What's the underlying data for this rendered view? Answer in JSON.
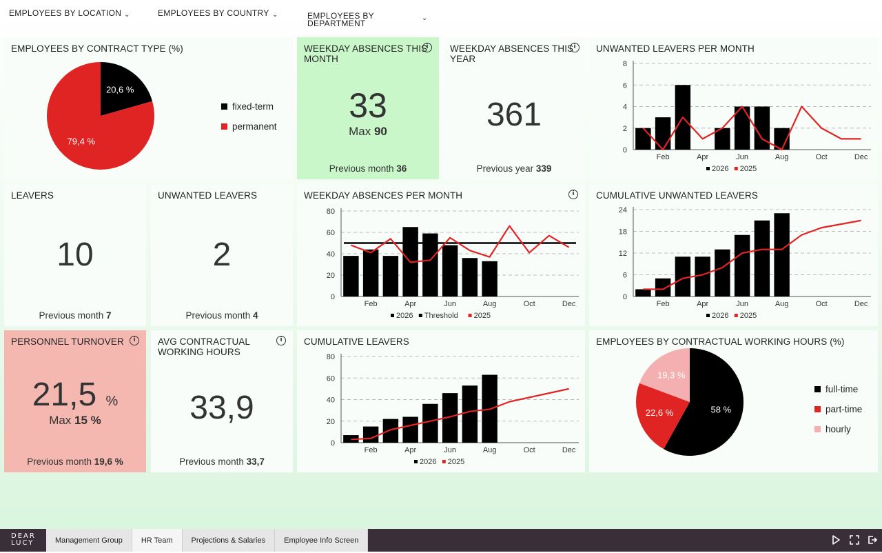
{
  "filters": [
    {
      "label": "EMPLOYEES BY LOCATION"
    },
    {
      "label": "EMPLOYEES BY COUNTRY"
    },
    {
      "label": "EMPLOYEES BY",
      "label2": "DEPARTMENT"
    }
  ],
  "contract": {
    "title": "EMPLOYEES BY CONTRACT TYPE (%)",
    "chart_data": {
      "type": "pie",
      "labels": [
        "fixed-term",
        "permanent"
      ],
      "values": [
        20.6,
        79.4
      ],
      "value_labels": [
        "20,6 %",
        "79,4 %"
      ],
      "colors": [
        "#000000",
        "#e02424"
      ],
      "legend_position": "right"
    }
  },
  "absences_month": {
    "title1": "WEEKDAY ABSENCES THIS",
    "title2": "MONTH",
    "value": "33",
    "max_label": "Max",
    "max_value": "90",
    "prev_label": "Previous month",
    "prev_value": "36",
    "bg": "#c9f7c9"
  },
  "absences_year": {
    "title1": "WEEKDAY ABSENCES THIS",
    "title2": "YEAR",
    "value": "361",
    "prev_label": "Previous year",
    "prev_value": "339"
  },
  "unwanted_per_month": {
    "title": "UNWANTED LEAVERS PER MONTH",
    "chart_data": {
      "type": "bar",
      "categories": [
        "Jan",
        "Feb",
        "Mar",
        "Apr",
        "May",
        "Jun",
        "Jul",
        "Aug",
        "Sep",
        "Oct",
        "Nov",
        "Dec"
      ],
      "tick_labels": [
        "Feb",
        "Apr",
        "Jun",
        "Aug",
        "Oct",
        "Dec"
      ],
      "ylim": [
        0,
        8
      ],
      "yticks": [
        "0",
        "2",
        "4",
        "6",
        "8"
      ],
      "series": [
        {
          "name": "2026",
          "type": "bar",
          "values": [
            2,
            3,
            6,
            null,
            2,
            4,
            4,
            2,
            null,
            null,
            null,
            null
          ]
        },
        {
          "name": "2025",
          "type": "line",
          "values": [
            2,
            0,
            3,
            1,
            2,
            4,
            1,
            0,
            4,
            2,
            1,
            1
          ]
        }
      ],
      "legend_position": "bottom"
    }
  },
  "leavers": {
    "title": "LEAVERS",
    "value": "10",
    "prev_label": "Previous month",
    "prev_value": "7"
  },
  "unwanted_leavers": {
    "title": "UNWANTED LEAVERS",
    "value": "2",
    "prev_label": "Previous month",
    "prev_value": "4"
  },
  "absences_per_month": {
    "title": "WEEKDAY ABSENCES PER MONTH",
    "chart_data": {
      "type": "bar",
      "categories": [
        "Jan",
        "Feb",
        "Mar",
        "Apr",
        "May",
        "Jun",
        "Jul",
        "Aug",
        "Sep",
        "Oct",
        "Nov",
        "Dec"
      ],
      "tick_labels": [
        "Feb",
        "Apr",
        "Jun",
        "Aug",
        "Oct",
        "Dec"
      ],
      "ylim": [
        0,
        80
      ],
      "yticks": [
        "0",
        "20",
        "40",
        "60",
        "80"
      ],
      "series": [
        {
          "name": "2026",
          "type": "bar",
          "values": [
            38,
            44,
            38,
            65,
            59,
            48,
            36,
            33,
            null,
            null,
            null,
            null
          ]
        },
        {
          "name": "Threshold",
          "type": "hline",
          "value": 50
        },
        {
          "name": "2025",
          "type": "line",
          "values": [
            48,
            41,
            54,
            32,
            34,
            55,
            43,
            37,
            66,
            41,
            57,
            46
          ]
        }
      ],
      "legend_position": "bottom"
    }
  },
  "cum_unwanted": {
    "title": "CUMULATIVE UNWANTED LEAVERS",
    "chart_data": {
      "type": "bar",
      "categories": [
        "Jan",
        "Feb",
        "Mar",
        "Apr",
        "May",
        "Jun",
        "Jul",
        "Aug",
        "Sep",
        "Oct",
        "Nov",
        "Dec"
      ],
      "tick_labels": [
        "Feb",
        "Apr",
        "Jun",
        "Aug",
        "Oct",
        "Dec"
      ],
      "ylim": [
        0,
        24
      ],
      "yticks": [
        "0",
        "6",
        "12",
        "18",
        "24"
      ],
      "series": [
        {
          "name": "2026",
          "type": "bar",
          "values": [
            2,
            5,
            11,
            11,
            13,
            17,
            21,
            23,
            null,
            null,
            null,
            null
          ]
        },
        {
          "name": "2025",
          "type": "line",
          "values": [
            2,
            2,
            5,
            6,
            8,
            12,
            13,
            13,
            17,
            19,
            20,
            21
          ]
        }
      ],
      "legend_position": "bottom"
    }
  },
  "turnover": {
    "title": "PERSONNEL TURNOVER",
    "value": "21,5",
    "unit": "%",
    "max_label": "Max",
    "max_value": "15 %",
    "prev_label": "Previous month",
    "prev_value": "19,6 %",
    "bg": "#f4b8b0"
  },
  "avg_hours": {
    "title1": "AVG CONTRACTUAL",
    "title2": "WORKING HOURS",
    "value": "33,9",
    "prev_label": "Previous month",
    "prev_value": "33,7"
  },
  "cum_leavers": {
    "title": "CUMULATIVE LEAVERS",
    "chart_data": {
      "type": "bar",
      "categories": [
        "Jan",
        "Feb",
        "Mar",
        "Apr",
        "May",
        "Jun",
        "Jul",
        "Aug",
        "Sep",
        "Oct",
        "Nov",
        "Dec"
      ],
      "tick_labels": [
        "Feb",
        "Apr",
        "Jun",
        "Aug",
        "Oct",
        "Dec"
      ],
      "ylim": [
        0,
        80
      ],
      "yticks": [
        "0",
        "20",
        "40",
        "60",
        "80"
      ],
      "series": [
        {
          "name": "2026",
          "type": "bar",
          "values": [
            7,
            15,
            22,
            24,
            36,
            46,
            53,
            63,
            null,
            null,
            null,
            null
          ]
        },
        {
          "name": "2025",
          "type": "line",
          "values": [
            3,
            4,
            12,
            16,
            20,
            24,
            29,
            31,
            38,
            42,
            46,
            50
          ]
        }
      ],
      "legend_position": "bottom"
    }
  },
  "working_hours": {
    "title": "EMPLOYEES BY CONTRACTUAL WORKING HOURS (%)",
    "chart_data": {
      "type": "pie",
      "labels": [
        "full-time",
        "part-time",
        "hourly"
      ],
      "values": [
        58,
        22.6,
        19.3
      ],
      "value_labels": [
        "58 %",
        "22,6 %",
        "19,3 %"
      ],
      "colors": [
        "#000000",
        "#e02424",
        "#f4b0b0"
      ],
      "legend_position": "right"
    }
  },
  "bottom": {
    "logo1": "DEAR",
    "logo2": "LUCY",
    "tabs": [
      {
        "label": "Management Group"
      },
      {
        "label": "HR Team"
      },
      {
        "label": "Projections & Salaries"
      },
      {
        "label": "Employee Info Screen"
      }
    ]
  },
  "colors": {
    "bar": "#000000",
    "red": "#e02424"
  }
}
